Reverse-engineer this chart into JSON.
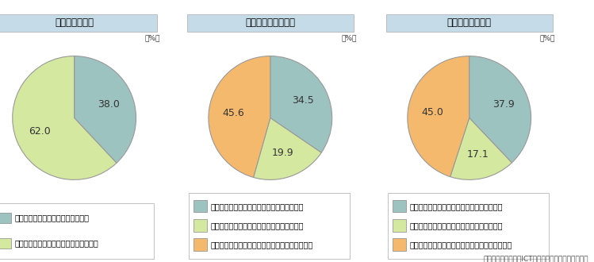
{
  "charts": [
    {
      "title": "商品の認知経路",
      "values": [
        38.0,
        62.0
      ],
      "labels": [
        "38.0",
        "62.0"
      ],
      "colors": [
        "#9dc3c1",
        "#d4e8a0"
      ],
      "startangle": 90,
      "counterclock": false,
      "legend_labels": [
        "インターネットを活用した認知手段",
        "インターネット以外を活用した認知手段"
      ],
      "legend_colors": [
        "#9dc3c1",
        "#d4e8a0"
      ]
    },
    {
      "title": "商品内容の情報収集",
      "values": [
        34.5,
        19.9,
        45.6
      ],
      "labels": [
        "34.5",
        "19.9",
        "45.6"
      ],
      "colors": [
        "#9dc3c1",
        "#d4e8a0",
        "#f5b96e"
      ],
      "startangle": 90,
      "counterclock": false,
      "legend_labels": [
        "インターネットのみを活用した情報収集手段",
        "インターネットと他を併用した情報収集手段",
        "インターネット以外のみを活用した情報収集手段"
      ],
      "legend_colors": [
        "#9dc3c1",
        "#d4e8a0",
        "#f5b96e"
      ]
    },
    {
      "title": "購入先の比較検討",
      "values": [
        37.9,
        17.1,
        45.0
      ],
      "labels": [
        "37.9",
        "17.1",
        "45.0"
      ],
      "colors": [
        "#9dc3c1",
        "#d4e8a0",
        "#f5b96e"
      ],
      "startangle": 90,
      "counterclock": false,
      "legend_labels": [
        "インターネットのみを活用した比較検討手段",
        "インターネットと他を併用した比較検討手段",
        "インターネット以外のみを活用した比較検討手段"
      ],
      "legend_colors": [
        "#9dc3c1",
        "#d4e8a0",
        "#f5b96e"
      ]
    }
  ],
  "source_text": "（出典）「消費者のICTネットワーク利用状況調査」",
  "title_bg_color": "#c5dce8",
  "title_fontsize": 8.5,
  "legend_fontsize": 7.0,
  "pct_label_fontsize": 9,
  "pct_label_color": "#333333",
  "edge_color": "#999999",
  "edge_linewidth": 0.8
}
